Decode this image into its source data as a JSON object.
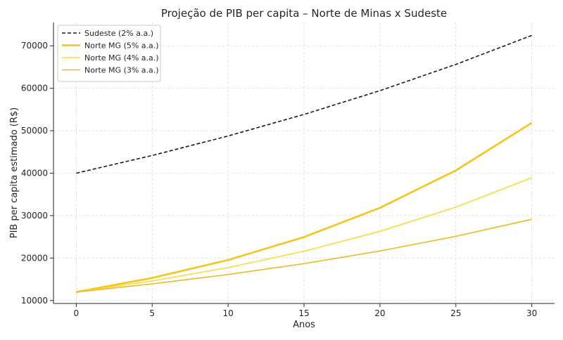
{
  "colors": {
    "sudeste": "#1a1a1a",
    "norte5": "#f5c518",
    "norte4": "#f7dc3c",
    "norte3": "#e8bb1f",
    "grid": "#d9d9d9",
    "axis": "#262626"
  },
  "chart_data": {
    "type": "line",
    "title": "Projeção de PIB per capita – Norte de Minas x Sudeste",
    "xlabel": "Anos",
    "ylabel": "PIB per capita estimado (R$)",
    "x": [
      0,
      5,
      10,
      15,
      20,
      25,
      30
    ],
    "xlim": [
      -1.5,
      31.5
    ],
    "ylim": [
      9300,
      75500
    ],
    "xticks": [
      0,
      5,
      10,
      15,
      20,
      25,
      30
    ],
    "yticks": [
      10000,
      20000,
      30000,
      40000,
      50000,
      60000,
      70000
    ],
    "grid": true,
    "legend_position": "top-left",
    "series": [
      {
        "name": "Sudeste (2% a.a.)",
        "style": "dashed",
        "color": "#1a1a1a",
        "values": [
          40000,
          44164,
          48760,
          53837,
          59438,
          65625,
          72454
        ]
      },
      {
        "name": "Norte MG (5% a.a.)",
        "style": "solid-bold",
        "color": "#f5c518",
        "values": [
          12000,
          15315,
          19547,
          24947,
          31840,
          40637,
          51865
        ]
      },
      {
        "name": "Norte MG (4% a.a.)",
        "style": "solid",
        "color": "#f7dc3c",
        "values": [
          12000,
          14600,
          17763,
          21611,
          26293,
          31989,
          38920
        ]
      },
      {
        "name": "Norte MG (3% a.a.)",
        "style": "solid",
        "color": "#e8bb1f",
        "values": [
          12000,
          13911,
          16127,
          18696,
          21673,
          25126,
          29127
        ]
      }
    ]
  }
}
